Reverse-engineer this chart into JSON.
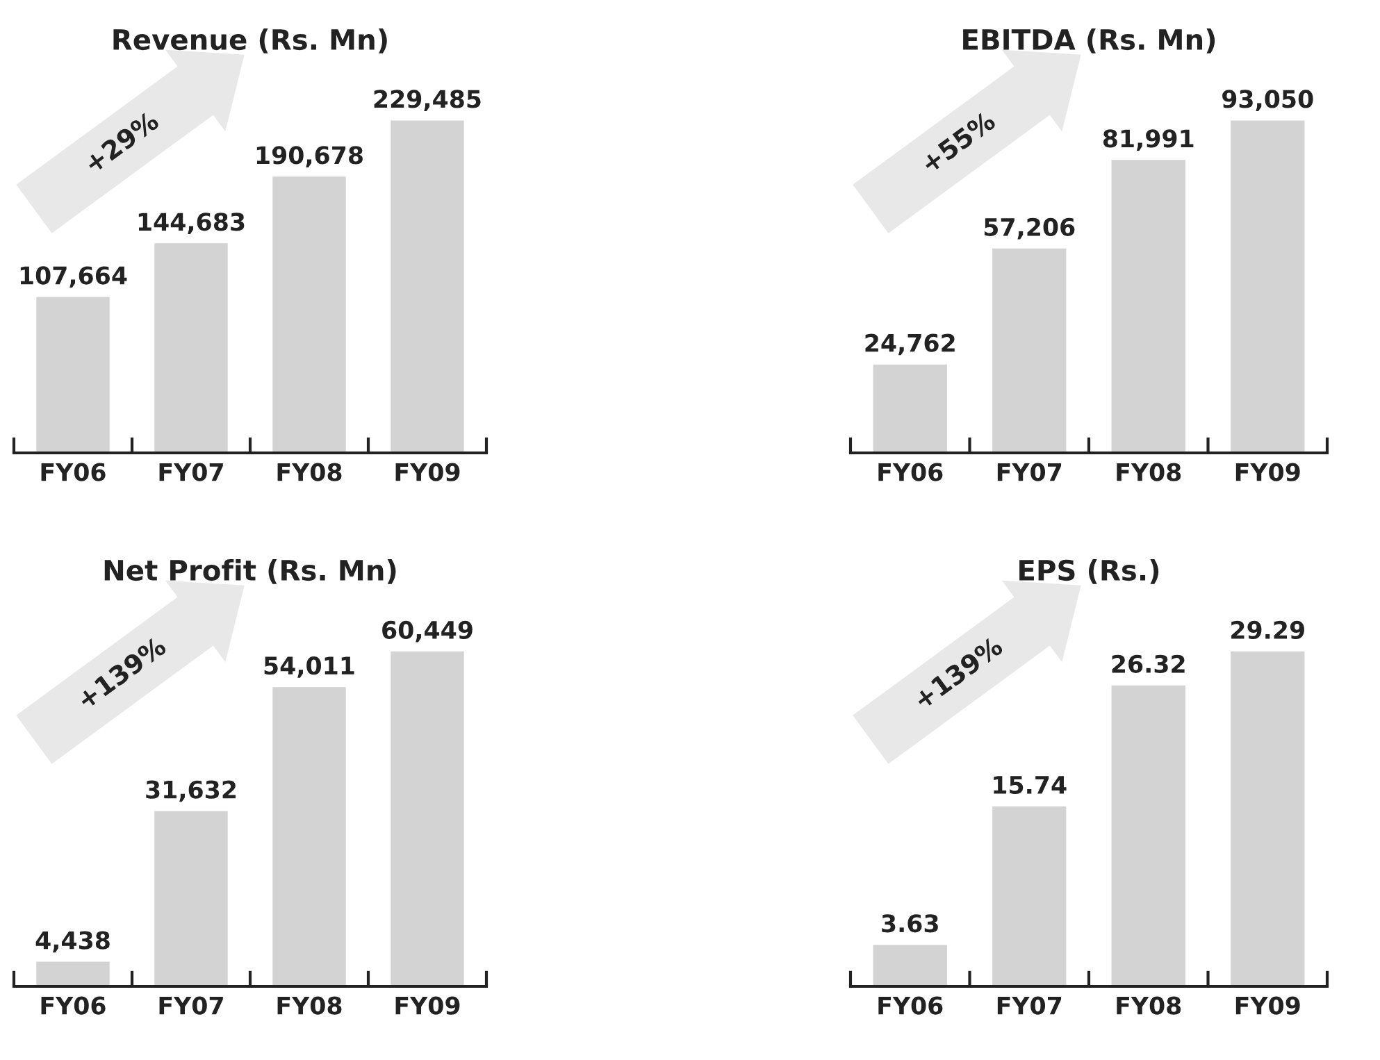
{
  "chart_data": [
    {
      "type": "bar",
      "title": "Revenue (Rs. Mn)",
      "categories": [
        "FY06",
        "FY07",
        "FY08",
        "FY09"
      ],
      "values": [
        107664,
        144683,
        190678,
        229485
      ],
      "value_labels": [
        "107,664",
        "144,683",
        "190,678",
        "229,485"
      ],
      "color": "#d3d3d3",
      "annotations": [
        "+29%"
      ]
    },
    {
      "type": "bar",
      "title": "EBITDA (Rs. Mn)",
      "categories": [
        "FY06",
        "FY07",
        "FY08",
        "FY09"
      ],
      "values": [
        24762,
        57206,
        81991,
        93050
      ],
      "value_labels": [
        "24,762",
        "57,206",
        "81,991",
        "93,050"
      ],
      "color": "#d3d3d3",
      "annotations": [
        "+55%"
      ]
    },
    {
      "type": "bar",
      "title": "Net Profit (Rs. Mn)",
      "categories": [
        "FY06",
        "FY07",
        "FY08",
        "FY09"
      ],
      "values": [
        4438,
        31632,
        54011,
        60449
      ],
      "value_labels": [
        "4,438",
        "31,632",
        "54,011",
        "60,449"
      ],
      "color": "#d3d3d3",
      "annotations": [
        "+139%"
      ]
    },
    {
      "type": "bar",
      "title": "EPS (Rs.)",
      "categories": [
        "FY06",
        "FY07",
        "FY08",
        "FY09"
      ],
      "values": [
        3.63,
        15.74,
        26.32,
        29.29
      ],
      "value_labels": [
        "3.63",
        "15.74",
        "26.32",
        "29.29"
      ],
      "color": "#d3d3d3",
      "annotations": [
        "+139%"
      ]
    }
  ]
}
